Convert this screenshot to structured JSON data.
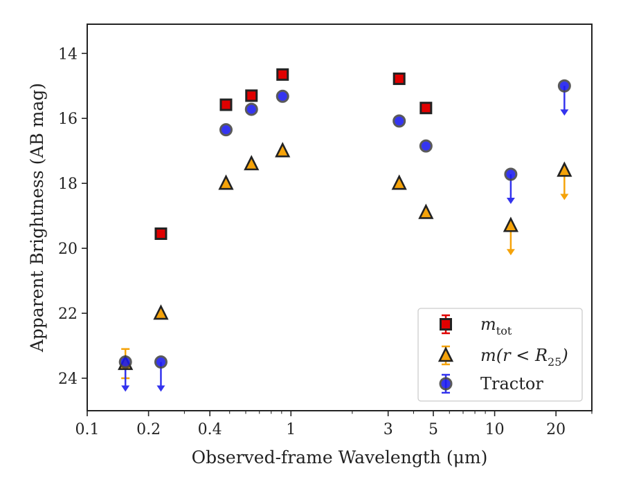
{
  "chart_data": {
    "type": "scatter",
    "title": "",
    "xlabel": "Observed-frame Wavelength (μm)",
    "ylabel": "Apparent Brightness (AB mag)",
    "xscale": "log",
    "xlim": [
      0.1,
      30
    ],
    "ylim": [
      25,
      13.1
    ],
    "y_inverted": true,
    "x_ticks": [
      0.1,
      0.2,
      0.4,
      1,
      3,
      5,
      10,
      20
    ],
    "x_tick_labels": [
      "0.1",
      "0.2",
      "0.4",
      "1",
      "3",
      "5",
      "10",
      "20"
    ],
    "y_ticks": [
      14,
      16,
      18,
      20,
      22,
      24
    ],
    "y_tick_labels": [
      "14",
      "16",
      "18",
      "20",
      "22",
      "24"
    ],
    "grid": false,
    "legend_position": "lower-right",
    "legend": [
      {
        "label_base": "m",
        "label_sub": "tot",
        "marker": "square"
      },
      {
        "label_base": "m(r < R",
        "label_sub": "25",
        "label_tail": ")",
        "marker": "triangle"
      },
      {
        "label_base": "Tractor",
        "marker": "circle"
      }
    ],
    "series": [
      {
        "name": "m_tot",
        "marker": "square",
        "color": "#e00000",
        "edge_color": "#222222",
        "error_color": "#e00000",
        "points": [
          {
            "x": 0.23,
            "y": 19.55
          },
          {
            "x": 0.48,
            "y": 15.58
          },
          {
            "x": 0.64,
            "y": 15.3
          },
          {
            "x": 0.91,
            "y": 14.65
          },
          {
            "x": 3.4,
            "y": 14.78
          },
          {
            "x": 4.6,
            "y": 15.68
          }
        ]
      },
      {
        "name": "m(r < R25)",
        "marker": "triangle",
        "color": "#f5a30a",
        "edge_color": "#222222",
        "error_color": "#f5a30a",
        "points": [
          {
            "x": 0.154,
            "y": 23.55,
            "err": 0.45
          },
          {
            "x": 0.23,
            "y": 22.0
          },
          {
            "x": 0.48,
            "y": 18.0
          },
          {
            "x": 0.64,
            "y": 17.4
          },
          {
            "x": 0.91,
            "y": 17.0
          },
          {
            "x": 3.4,
            "y": 18.0
          },
          {
            "x": 4.6,
            "y": 18.9
          },
          {
            "x": 12.0,
            "y": 19.3,
            "upper_limit": true
          },
          {
            "x": 22.0,
            "y": 17.6,
            "upper_limit": true
          }
        ]
      },
      {
        "name": "Tractor",
        "marker": "circle",
        "color": "#1a1aee",
        "edge_color": "#444444",
        "error_color": "#3333ee",
        "points": [
          {
            "x": 0.154,
            "y": 23.5,
            "upper_limit": true
          },
          {
            "x": 0.23,
            "y": 23.5,
            "upper_limit": true
          },
          {
            "x": 0.48,
            "y": 16.35
          },
          {
            "x": 0.64,
            "y": 15.72
          },
          {
            "x": 0.91,
            "y": 15.32
          },
          {
            "x": 3.4,
            "y": 16.08
          },
          {
            "x": 4.6,
            "y": 16.85
          },
          {
            "x": 12.0,
            "y": 17.72,
            "upper_limit": true
          },
          {
            "x": 22.0,
            "y": 15.0,
            "upper_limit": true
          }
        ]
      }
    ]
  }
}
